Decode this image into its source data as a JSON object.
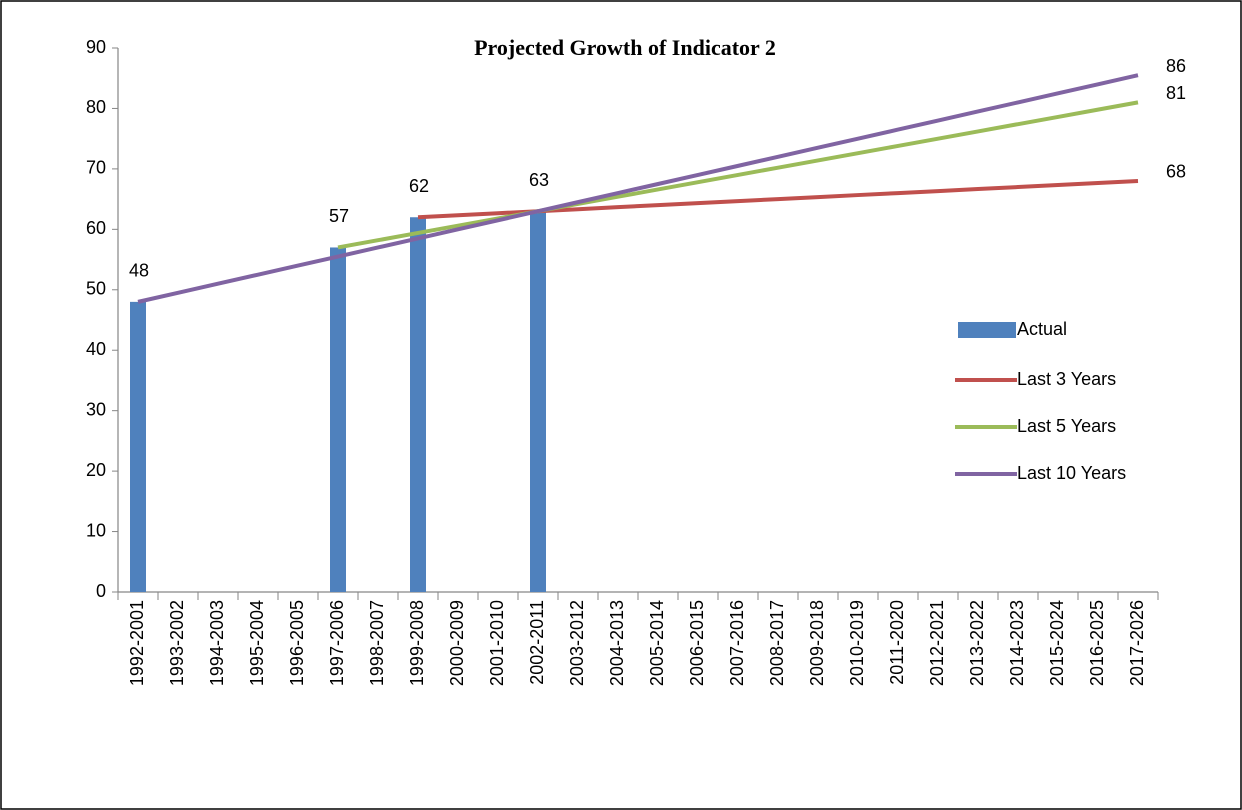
{
  "chart_data": {
    "type": "bar",
    "title": "Projected Growth of Indicator 2",
    "categories": [
      "1992-2001",
      "1993-2002",
      "1994-2003",
      "1995-2004",
      "1996-2005",
      "1997-2006",
      "1998-2007",
      "1999-2008",
      "2000-2009",
      "2001-2010",
      "2002-2011",
      "2003-2012",
      "2004-2013",
      "2005-2014",
      "2006-2015",
      "2007-2016",
      "2008-2017",
      "2009-2018",
      "2010-2019",
      "2011-2020",
      "2012-2021",
      "2013-2022",
      "2014-2023",
      "2015-2024",
      "2016-2025",
      "2017-2026"
    ],
    "series": [
      {
        "name": "Actual",
        "type": "bar",
        "color": "#4f81bd",
        "values": [
          48,
          null,
          null,
          null,
          null,
          57,
          null,
          62,
          null,
          null,
          63,
          null,
          null,
          null,
          null,
          null,
          null,
          null,
          null,
          null,
          null,
          null,
          null,
          null,
          null,
          null
        ]
      },
      {
        "name": "Last 3 Years",
        "type": "line",
        "color": "#c0504d",
        "values": [
          null,
          null,
          null,
          null,
          null,
          null,
          null,
          62,
          62.33,
          62.67,
          63,
          63.33,
          63.67,
          64,
          64.33,
          64.67,
          65,
          65.33,
          65.67,
          66,
          66.33,
          66.67,
          67,
          67.33,
          67.67,
          68
        ]
      },
      {
        "name": "Last 5 Years",
        "type": "line",
        "color": "#9bbb59",
        "values": [
          null,
          null,
          null,
          null,
          null,
          57,
          58.2,
          59.4,
          60.6,
          61.8,
          63,
          64.2,
          65.4,
          66.6,
          67.8,
          69,
          70.2,
          71.4,
          72.6,
          73.8,
          75,
          76.2,
          77.4,
          78.6,
          79.8,
          81
        ]
      },
      {
        "name": "Last 10 Years",
        "type": "line",
        "color": "#8064a2",
        "values": [
          48,
          49.5,
          51,
          52.5,
          54,
          55.5,
          57,
          58.5,
          60,
          61.5,
          63,
          64.5,
          66,
          67.5,
          69,
          70.5,
          72,
          73.5,
          75,
          76.5,
          78,
          79.5,
          81,
          82.5,
          84,
          85.5
        ],
        "value_labels": [
          null,
          null,
          null,
          null,
          null,
          null,
          null,
          null,
          null,
          null,
          null,
          null,
          null,
          null,
          null,
          null,
          null,
          null,
          null,
          null,
          null,
          null,
          null,
          null,
          null,
          "86"
        ]
      }
    ],
    "ylim": [
      0,
      90
    ],
    "yticks": [
      0,
      10,
      20,
      30,
      40,
      50,
      60,
      70,
      80,
      90
    ],
    "grid": false,
    "legend": "right"
  }
}
